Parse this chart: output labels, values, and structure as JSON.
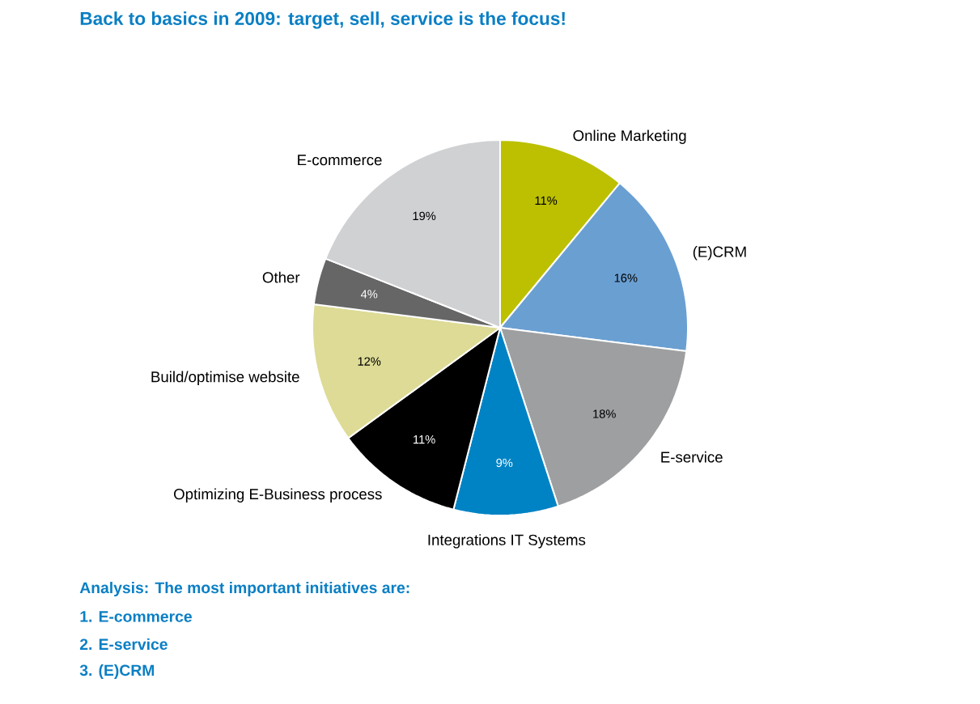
{
  "chart_data": {
    "type": "pie",
    "title": "Back to basics in 2009: target, sell, service is the focus!",
    "categories": [
      "Online Marketing",
      "(E)CRM",
      "E-service",
      "Integrations IT Systems",
      "Optimizing E-Business process",
      "Build/optimise website",
      "Other",
      "E-commerce"
    ],
    "values": [
      11,
      16,
      18,
      9,
      11,
      12,
      4,
      19
    ],
    "value_labels": [
      "11%",
      "16%",
      "18%",
      "9%",
      "11%",
      "12%",
      "4%",
      "19%"
    ],
    "colors": [
      "#bcc000",
      "#6a9fd2",
      "#9d9fa1",
      "#0083c4",
      "#000000",
      "#dddb95",
      "#666666",
      "#d0d1d3"
    ],
    "annotations": [
      "Analysis: The most important initiatives are:",
      "1. E-commerce",
      "2. E-service",
      "3. (E)CRM"
    ]
  }
}
